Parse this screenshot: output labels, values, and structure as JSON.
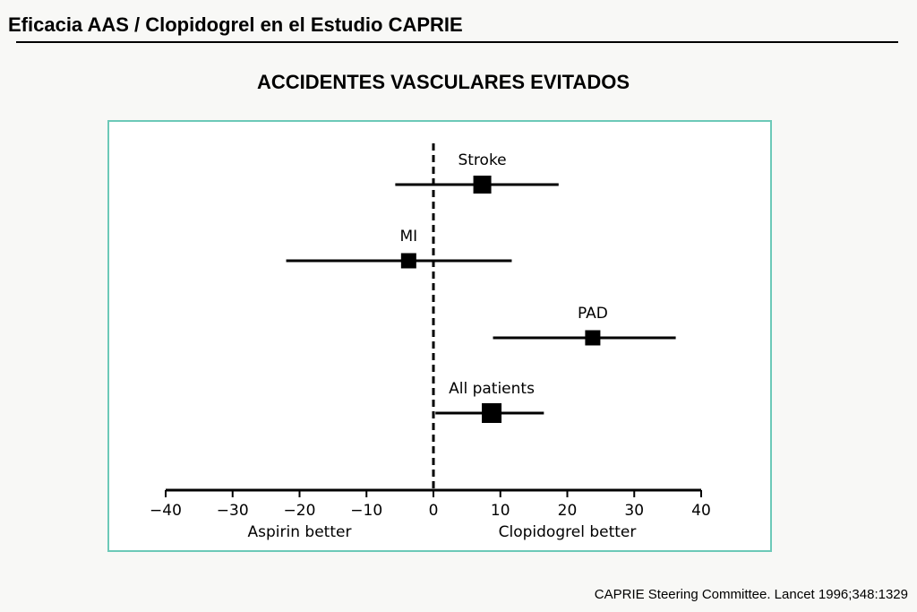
{
  "slide": {
    "title": "Eficacia AAS / Clopidogrel en el Estudio CAPRIE",
    "subtitle": "ACCIDENTES VASCULARES EVITADOS",
    "citation": "CAPRIE Steering Committee. Lancet 1996;348:1329"
  },
  "chart_data": {
    "type": "forest",
    "title": "",
    "xlim": [
      -40,
      40
    ],
    "x_ticks": [
      -40,
      -30,
      -20,
      -10,
      0,
      10,
      20,
      30,
      40
    ],
    "x_tick_labels": [
      "−40",
      "−30",
      "−20",
      "−10",
      "0",
      "10",
      "20",
      "30",
      "40"
    ],
    "left_label": "Aspirin better",
    "right_label": "Clopidogrel better",
    "reference_line": 0,
    "grid": false,
    "rows": [
      {
        "label": "Stroke",
        "estimate": 7.3,
        "lower": -5.7,
        "upper": 18.7
      },
      {
        "label": "MI",
        "estimate": -3.7,
        "lower": -22.0,
        "upper": 11.7
      },
      {
        "label": "PAD",
        "estimate": 23.8,
        "lower": 8.9,
        "upper": 36.2
      },
      {
        "label": "All patients",
        "estimate": 8.7,
        "lower": 0.3,
        "upper": 16.5
      }
    ]
  }
}
